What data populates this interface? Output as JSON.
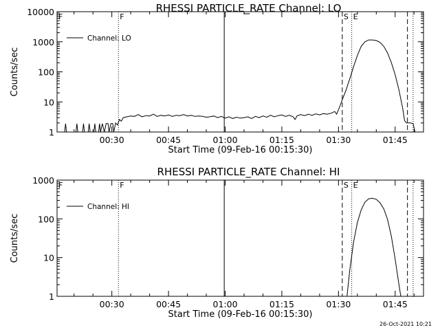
{
  "timestamp": "26-Oct-2021 10:21",
  "colors": {
    "line": "#000000",
    "background": "#ffffff"
  },
  "chart_data": [
    {
      "type": "line",
      "title": "RHESSI PARTICLE_RATE Channel: LO",
      "xlabel": "Start Time (09-Feb-16 00:15:30)",
      "ylabel": "Counts/sec",
      "yscale": "log",
      "ylim": [
        1,
        10000
      ],
      "xlim": [
        "00:15:30",
        "01:52:30"
      ],
      "x_ticks": [
        "00:30",
        "00:45",
        "01:00",
        "01:15",
        "01:30",
        "01:45"
      ],
      "y_ticks": [
        "1",
        "10",
        "100",
        "1000",
        "10000"
      ],
      "legend": {
        "position": "top-left",
        "entries": [
          "Channel: LO"
        ]
      },
      "vlines": [
        {
          "time": "00:31:45",
          "style": "dotted",
          "label": "F"
        },
        {
          "time": "00:15:30",
          "style": "solid",
          "label": "F"
        },
        {
          "time": "00:59:45",
          "style": "solid",
          "label": ""
        },
        {
          "time": "01:31:00",
          "style": "dashed",
          "label": "S"
        },
        {
          "time": "01:33:30",
          "style": "dotted",
          "label": "E"
        },
        {
          "time": "01:48:15",
          "style": "dashed",
          "label": ""
        },
        {
          "time": "01:49:45",
          "style": "dotted",
          "label": ""
        }
      ],
      "series": [
        {
          "name": "Channel: LO",
          "points": [
            [
              "00:15:30",
              1
            ],
            [
              "00:17:30",
              1
            ],
            [
              "00:17:45",
              1.9
            ],
            [
              "00:18:00",
              1
            ],
            [
              "00:20:30",
              1
            ],
            [
              "00:20:45",
              1.9
            ],
            [
              "00:21:00",
              1
            ],
            [
              "00:22:15",
              1
            ],
            [
              "00:22:30",
              1.9
            ],
            [
              "00:22:45",
              1
            ],
            [
              "00:23:45",
              1
            ],
            [
              "00:24:00",
              1.9
            ],
            [
              "00:24:15",
              1
            ],
            [
              "00:25:15",
              1
            ],
            [
              "00:25:30",
              1.9
            ],
            [
              "00:25:45",
              1
            ],
            [
              "00:26:30",
              1
            ],
            [
              "00:26:45",
              1.9
            ],
            [
              "00:27:00",
              1
            ],
            [
              "00:27:30",
              1.9
            ],
            [
              "00:28:00",
              1
            ],
            [
              "00:28:30",
              1.9
            ],
            [
              "00:29:00",
              1.9
            ],
            [
              "00:29:15",
              1
            ],
            [
              "00:29:45",
              1.9
            ],
            [
              "00:30:15",
              1.9
            ],
            [
              "00:30:30",
              1
            ],
            [
              "00:31:00",
              2
            ],
            [
              "00:31:30",
              1.7
            ],
            [
              "00:32:00",
              2.6
            ],
            [
              "00:32:30",
              2.3
            ],
            [
              "00:33:00",
              3
            ],
            [
              "00:34:00",
              3.2
            ],
            [
              "00:35:00",
              3.4
            ],
            [
              "00:36:00",
              3.3
            ],
            [
              "00:37:00",
              3.8
            ],
            [
              "00:38:00",
              3.2
            ],
            [
              "00:39:00",
              3.5
            ],
            [
              "00:40:00",
              3.4
            ],
            [
              "00:41:00",
              3.9
            ],
            [
              "00:42:00",
              3.3
            ],
            [
              "00:43:00",
              3.6
            ],
            [
              "00:44:00",
              3.4
            ],
            [
              "00:45:00",
              3.7
            ],
            [
              "00:46:00",
              3.3
            ],
            [
              "00:47:00",
              3.6
            ],
            [
              "00:48:00",
              3.5
            ],
            [
              "00:49:00",
              3.8
            ],
            [
              "00:50:00",
              3.4
            ],
            [
              "00:51:00",
              3.6
            ],
            [
              "00:52:00",
              3.3
            ],
            [
              "00:53:00",
              3.4
            ],
            [
              "00:54:00",
              3.3
            ],
            [
              "00:55:00",
              3.1
            ],
            [
              "00:56:00",
              3.2
            ],
            [
              "00:57:00",
              3.4
            ],
            [
              "00:58:00",
              3.0
            ],
            [
              "00:59:00",
              3.3
            ],
            [
              "01:00:00",
              2.9
            ],
            [
              "01:01:00",
              3.2
            ],
            [
              "01:02:00",
              2.8
            ],
            [
              "01:03:00",
              3.1
            ],
            [
              "01:04:00",
              2.9
            ],
            [
              "01:05:00",
              3.0
            ],
            [
              "01:06:00",
              3.2
            ],
            [
              "01:07:00",
              2.8
            ],
            [
              "01:08:00",
              3.3
            ],
            [
              "01:09:00",
              3.0
            ],
            [
              "01:10:00",
              3.4
            ],
            [
              "01:11:00",
              3.1
            ],
            [
              "01:12:00",
              3.6
            ],
            [
              "01:13:00",
              3.2
            ],
            [
              "01:14:00",
              3.5
            ],
            [
              "01:15:00",
              3.7
            ],
            [
              "01:16:00",
              3.3
            ],
            [
              "01:17:00",
              3.6
            ],
            [
              "01:18:00",
              3.2
            ],
            [
              "01:18:30",
              2.6
            ],
            [
              "01:19:00",
              3.4
            ],
            [
              "01:20:00",
              3.8
            ],
            [
              "01:21:00",
              3.5
            ],
            [
              "01:22:00",
              3.9
            ],
            [
              "01:23:00",
              3.6
            ],
            [
              "01:24:00",
              4.0
            ],
            [
              "01:25:00",
              3.7
            ],
            [
              "01:26:00",
              4.1
            ],
            [
              "01:27:00",
              3.9
            ],
            [
              "01:28:00",
              4.2
            ],
            [
              "01:29:00",
              4.8
            ],
            [
              "01:29:30",
              3.9
            ],
            [
              "01:30:00",
              5.5
            ],
            [
              "01:30:30",
              8
            ],
            [
              "01:31:00",
              12
            ],
            [
              "01:32:00",
              25
            ],
            [
              "01:33:00",
              60
            ],
            [
              "01:34:00",
              150
            ],
            [
              "01:35:00",
              350
            ],
            [
              "01:36:00",
              700
            ],
            [
              "01:37:00",
              1000
            ],
            [
              "01:38:00",
              1150
            ],
            [
              "01:39:00",
              1150
            ],
            [
              "01:40:00",
              1100
            ],
            [
              "01:41:00",
              950
            ],
            [
              "01:42:00",
              700
            ],
            [
              "01:43:00",
              420
            ],
            [
              "01:44:00",
              200
            ],
            [
              "01:45:00",
              80
            ],
            [
              "01:46:00",
              25
            ],
            [
              "01:47:00",
              6
            ],
            [
              "01:47:30",
              2.4
            ],
            [
              "01:48:00",
              2.0
            ],
            [
              "01:49:00",
              2.0
            ],
            [
              "01:49:45",
              1.9
            ],
            [
              "01:50:15",
              1
            ],
            [
              "01:52:30",
              1
            ]
          ]
        }
      ]
    },
    {
      "type": "line",
      "title": "RHESSI PARTICLE_RATE Channel: HI",
      "xlabel": "Start Time (09-Feb-16 00:15:30)",
      "ylabel": "Counts/sec",
      "yscale": "log",
      "ylim": [
        1,
        1000
      ],
      "xlim": [
        "00:15:30",
        "01:52:30"
      ],
      "x_ticks": [
        "00:30",
        "00:45",
        "01:00",
        "01:15",
        "01:30",
        "01:45"
      ],
      "y_ticks": [
        "1",
        "10",
        "100",
        "1000"
      ],
      "legend": {
        "position": "top-left",
        "entries": [
          "Channel: HI"
        ]
      },
      "vlines": [
        {
          "time": "00:31:45",
          "style": "dotted",
          "label": "F"
        },
        {
          "time": "00:15:30",
          "style": "solid",
          "label": "F"
        },
        {
          "time": "00:59:45",
          "style": "solid",
          "label": ""
        },
        {
          "time": "01:31:00",
          "style": "dashed",
          "label": "S"
        },
        {
          "time": "01:33:30",
          "style": "dotted",
          "label": "E"
        },
        {
          "time": "01:48:15",
          "style": "dashed",
          "label": ""
        },
        {
          "time": "01:49:45",
          "style": "dotted",
          "label": ""
        }
      ],
      "series": [
        {
          "name": "Channel: HI",
          "points": [
            [
              "01:32:15",
              1
            ],
            [
              "01:33:00",
              5
            ],
            [
              "01:34:00",
              25
            ],
            [
              "01:35:00",
              80
            ],
            [
              "01:36:00",
              170
            ],
            [
              "01:37:00",
              270
            ],
            [
              "01:38:00",
              330
            ],
            [
              "01:39:00",
              340
            ],
            [
              "01:40:00",
              320
            ],
            [
              "01:41:00",
              260
            ],
            [
              "01:42:00",
              180
            ],
            [
              "01:43:00",
              95
            ],
            [
              "01:44:00",
              35
            ],
            [
              "01:45:00",
              9
            ],
            [
              "01:46:00",
              2
            ],
            [
              "01:46:30",
              1
            ]
          ]
        }
      ]
    }
  ]
}
